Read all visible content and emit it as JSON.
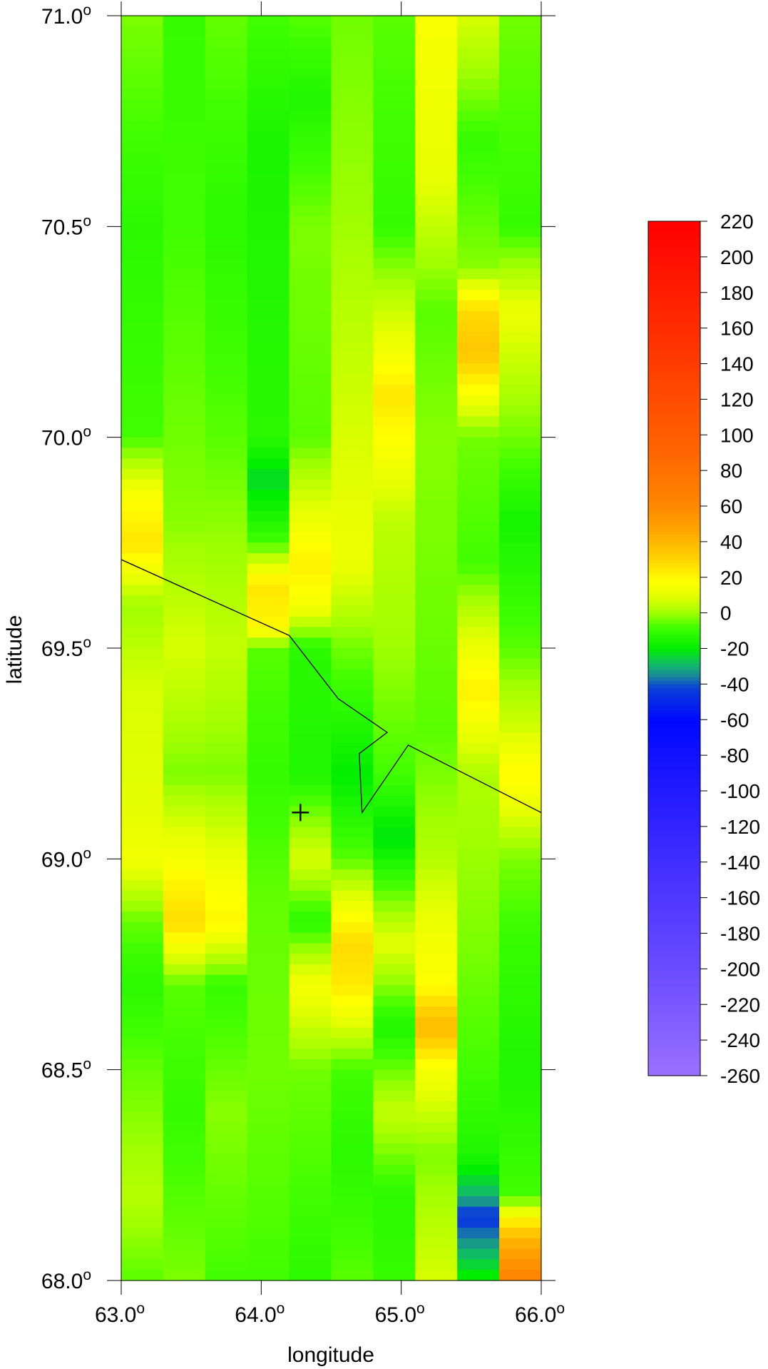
{
  "chart_data": {
    "type": "heatmap",
    "xlabel": "longitude",
    "ylabel": "latitude",
    "xlim": [
      63.0,
      66.0
    ],
    "ylim": [
      68.0,
      71.0
    ],
    "x_ticks": [
      {
        "value": 63.0,
        "label": "63.0"
      },
      {
        "value": 64.0,
        "label": "64.0"
      },
      {
        "value": 65.0,
        "label": "65.0"
      },
      {
        "value": 66.0,
        "label": "66.0"
      }
    ],
    "y_ticks": [
      {
        "value": 68.0,
        "label": "68.0"
      },
      {
        "value": 68.5,
        "label": "68.5"
      },
      {
        "value": 69.0,
        "label": "69.0"
      },
      {
        "value": 69.5,
        "label": "69.5"
      },
      {
        "value": 70.0,
        "label": "70.0"
      },
      {
        "value": 70.5,
        "label": "70.5"
      },
      {
        "value": 71.0,
        "label": "71.0"
      }
    ],
    "degree_symbol": "o",
    "columns": [
      {
        "lon_min": 63.0,
        "lon_max": 63.3,
        "stops": [
          [
            71.0,
            -3
          ],
          [
            70.5,
            -12
          ],
          [
            70.0,
            -8
          ],
          [
            69.85,
            18
          ],
          [
            69.75,
            25
          ],
          [
            69.6,
            0
          ],
          [
            69.4,
            8
          ],
          [
            69.1,
            10
          ],
          [
            69.0,
            14
          ],
          [
            68.85,
            -5
          ],
          [
            68.7,
            -12
          ],
          [
            68.5,
            -5
          ],
          [
            68.2,
            3
          ],
          [
            68.0,
            -6
          ]
        ]
      },
      {
        "lon_min": 63.3,
        "lon_max": 63.6,
        "stops": [
          [
            71.0,
            -10
          ],
          [
            70.5,
            -8
          ],
          [
            70.0,
            -4
          ],
          [
            69.8,
            -2
          ],
          [
            69.5,
            8
          ],
          [
            69.2,
            -3
          ],
          [
            68.95,
            20
          ],
          [
            68.85,
            28
          ],
          [
            68.7,
            -6
          ],
          [
            68.4,
            -10
          ],
          [
            68.0,
            -3
          ]
        ]
      },
      {
        "lon_min": 63.6,
        "lon_max": 63.9,
        "stops": [
          [
            71.0,
            -5
          ],
          [
            70.5,
            -12
          ],
          [
            70.0,
            -6
          ],
          [
            69.5,
            5
          ],
          [
            69.2,
            -3
          ],
          [
            68.95,
            15
          ],
          [
            68.85,
            20
          ],
          [
            68.7,
            -10
          ],
          [
            68.4,
            -2
          ],
          [
            68.0,
            -8
          ]
        ]
      },
      {
        "lon_min": 63.9,
        "lon_max": 64.2,
        "stops": [
          [
            71.0,
            -8
          ],
          [
            70.7,
            -15
          ],
          [
            70.0,
            -12
          ],
          [
            69.9,
            -24
          ],
          [
            69.75,
            -8
          ],
          [
            69.65,
            25
          ],
          [
            69.55,
            20
          ],
          [
            69.5,
            -6
          ],
          [
            69.2,
            -10
          ],
          [
            68.9,
            -5
          ],
          [
            68.5,
            -4
          ],
          [
            68.0,
            -8
          ]
        ]
      },
      {
        "lon_min": 64.2,
        "lon_max": 64.5,
        "stops": [
          [
            71.0,
            -6
          ],
          [
            70.8,
            -14
          ],
          [
            70.5,
            -3
          ],
          [
            70.0,
            -6
          ],
          [
            69.7,
            22
          ],
          [
            69.6,
            15
          ],
          [
            69.5,
            -12
          ],
          [
            69.2,
            -14
          ],
          [
            69.0,
            8
          ],
          [
            68.85,
            -12
          ],
          [
            68.7,
            15
          ],
          [
            68.5,
            -4
          ],
          [
            68.2,
            -8
          ],
          [
            68.0,
            -12
          ]
        ]
      },
      {
        "lon_min": 64.5,
        "lon_max": 64.8,
        "stops": [
          [
            71.0,
            -4
          ],
          [
            70.5,
            0
          ],
          [
            70.0,
            8
          ],
          [
            69.7,
            12
          ],
          [
            69.5,
            -4
          ],
          [
            69.2,
            -20
          ],
          [
            69.0,
            -6
          ],
          [
            68.8,
            28
          ],
          [
            68.7,
            24
          ],
          [
            68.5,
            -8
          ],
          [
            68.3,
            -12
          ],
          [
            68.0,
            -6
          ]
        ]
      },
      {
        "lon_min": 64.8,
        "lon_max": 65.1,
        "stops": [
          [
            71.0,
            -6
          ],
          [
            70.5,
            -10
          ],
          [
            70.2,
            14
          ],
          [
            70.1,
            25
          ],
          [
            69.8,
            4
          ],
          [
            69.5,
            0
          ],
          [
            69.2,
            -8
          ],
          [
            69.05,
            -22
          ],
          [
            68.8,
            10
          ],
          [
            68.6,
            -14
          ],
          [
            68.4,
            5
          ],
          [
            68.2,
            -12
          ],
          [
            68.0,
            -10
          ]
        ]
      },
      {
        "lon_min": 65.1,
        "lon_max": 65.4,
        "stops": [
          [
            71.0,
            16
          ],
          [
            70.6,
            10
          ],
          [
            70.3,
            -6
          ],
          [
            70.0,
            -2
          ],
          [
            69.6,
            -4
          ],
          [
            69.3,
            -6
          ],
          [
            69.0,
            3
          ],
          [
            68.85,
            12
          ],
          [
            68.7,
            18
          ],
          [
            68.6,
            40
          ],
          [
            68.5,
            15
          ],
          [
            68.3,
            -3
          ],
          [
            68.0,
            8
          ]
        ]
      },
      {
        "lon_min": 65.4,
        "lon_max": 65.7,
        "stops": [
          [
            71.0,
            8
          ],
          [
            70.7,
            -10
          ],
          [
            70.4,
            -2
          ],
          [
            70.3,
            28
          ],
          [
            70.2,
            35
          ],
          [
            70.0,
            -4
          ],
          [
            69.7,
            -8
          ],
          [
            69.4,
            22
          ],
          [
            69.2,
            2
          ],
          [
            68.8,
            -3
          ],
          [
            68.5,
            -8
          ],
          [
            68.3,
            -14
          ],
          [
            68.2,
            -30
          ],
          [
            68.15,
            -45
          ],
          [
            68.1,
            -35
          ],
          [
            68.0,
            -18
          ]
        ]
      },
      {
        "lon_min": 65.7,
        "lon_max": 66.0,
        "stops": [
          [
            71.0,
            -4
          ],
          [
            70.5,
            -10
          ],
          [
            70.3,
            12
          ],
          [
            70.0,
            -4
          ],
          [
            69.8,
            -16
          ],
          [
            69.5,
            -6
          ],
          [
            69.3,
            8
          ],
          [
            69.2,
            20
          ],
          [
            69.0,
            -3
          ],
          [
            68.8,
            -10
          ],
          [
            68.5,
            -14
          ],
          [
            68.2,
            -8
          ],
          [
            68.15,
            18
          ],
          [
            68.1,
            40
          ],
          [
            68.0,
            65
          ]
        ]
      }
    ],
    "coastline": [
      [
        63.0,
        69.71
      ],
      [
        64.2,
        69.53
      ],
      [
        64.55,
        69.38
      ],
      [
        64.9,
        69.3
      ],
      [
        64.7,
        69.25
      ],
      [
        64.72,
        69.11
      ],
      [
        65.05,
        69.27
      ],
      [
        66.0,
        69.11
      ]
    ],
    "marker": {
      "lon": 64.28,
      "lat": 69.11,
      "symbol": "+"
    },
    "colorbar": {
      "min": -260,
      "max": 220,
      "ticks": [
        220,
        200,
        180,
        160,
        140,
        120,
        100,
        80,
        60,
        40,
        20,
        0,
        -20,
        -40,
        -60,
        -80,
        -100,
        -120,
        -140,
        -160,
        -180,
        -200,
        -220,
        -240,
        -260
      ],
      "colormap": [
        [
          -260,
          "#9a70ff"
        ],
        [
          -200,
          "#6a4cff"
        ],
        [
          -130,
          "#3a28ff"
        ],
        [
          -60,
          "#0008ff"
        ],
        [
          -42,
          "#0a40d8"
        ],
        [
          -35,
          "#1a8a98"
        ],
        [
          -28,
          "#10c060"
        ],
        [
          -20,
          "#00ee00"
        ],
        [
          -8,
          "#40ff00"
        ],
        [
          0,
          "#a0ff00"
        ],
        [
          10,
          "#e6ff00"
        ],
        [
          18,
          "#ffff00"
        ],
        [
          30,
          "#ffd400"
        ],
        [
          45,
          "#ffaa00"
        ],
        [
          60,
          "#ff8800"
        ],
        [
          90,
          "#ff6600"
        ],
        [
          140,
          "#ff3c00"
        ],
        [
          220,
          "#ff0000"
        ]
      ]
    }
  }
}
